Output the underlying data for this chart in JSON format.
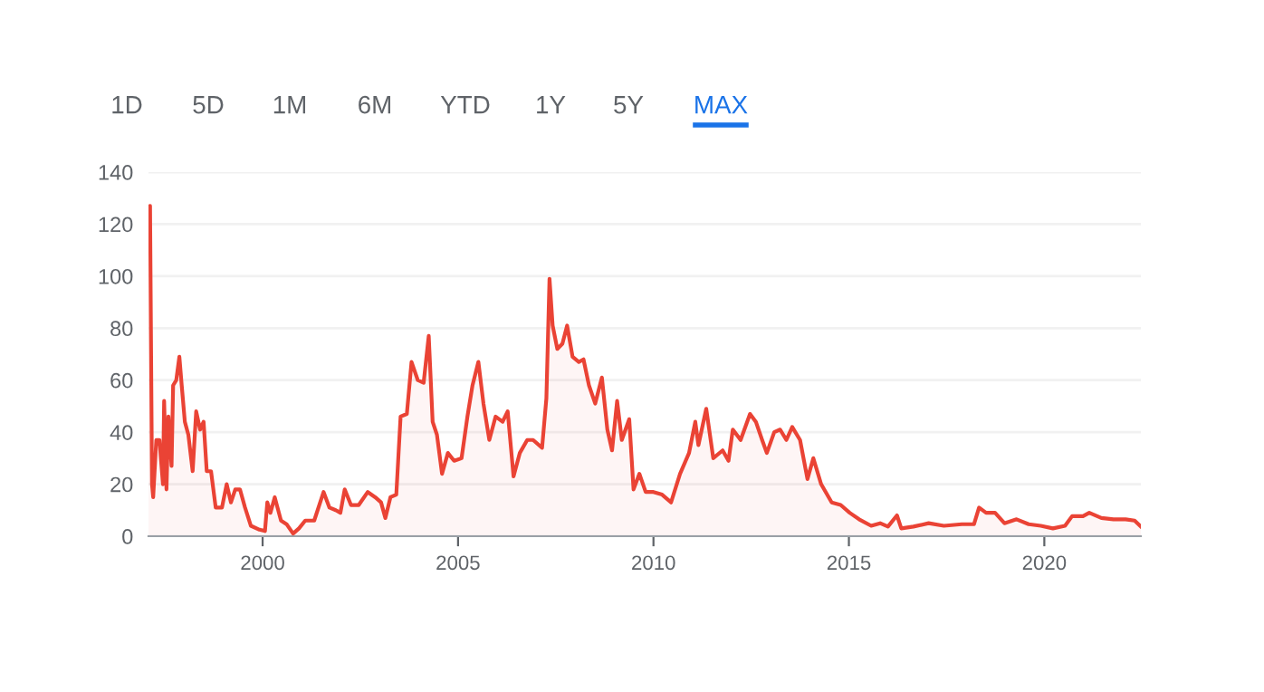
{
  "chart_data": {
    "type": "area",
    "annotations": [
      "1D",
      "5D",
      "1M",
      "6M",
      "YTD",
      "1Y",
      "5Y",
      "MAX"
    ],
    "x": [
      1997.08,
      1997.12,
      1997.17,
      1997.2,
      1997.28,
      1997.36,
      1997.45,
      1997.48,
      1997.54,
      1997.59,
      1997.67,
      1997.71,
      1997.79,
      1997.87,
      1997.93,
      1998.01,
      1998.1,
      1998.21,
      1998.3,
      1998.4,
      1998.49,
      1998.57,
      1998.68,
      1998.8,
      1998.96,
      1999.08,
      1999.19,
      1999.3,
      1999.42,
      1999.55,
      1999.7,
      1999.92,
      2000.06,
      2000.12,
      2000.2,
      2000.31,
      2000.47,
      2000.62,
      2000.78,
      2000.93,
      2001.09,
      2001.32,
      2001.56,
      2001.71,
      2001.87,
      2001.99,
      2002.1,
      2002.26,
      2002.46,
      2002.69,
      2002.88,
      2003.03,
      2003.14,
      2003.27,
      2003.42,
      2003.53,
      2003.69,
      2003.81,
      2003.97,
      2004.12,
      2004.25,
      2004.35,
      2004.46,
      2004.59,
      2004.74,
      2004.9,
      2005.09,
      2005.24,
      2005.37,
      2005.52,
      2005.65,
      2005.8,
      2005.96,
      2006.14,
      2006.27,
      2006.42,
      2006.58,
      2006.77,
      2006.92,
      2007.15,
      2007.26,
      2007.34,
      2007.42,
      2007.54,
      2007.67,
      2007.79,
      2007.93,
      2008.09,
      2008.21,
      2008.35,
      2008.51,
      2008.68,
      2008.82,
      2008.94,
      2009.07,
      2009.19,
      2009.38,
      2009.49,
      2009.64,
      2009.8,
      2010.0,
      2010.22,
      2010.45,
      2010.68,
      2010.91,
      2011.07,
      2011.15,
      2011.35,
      2011.53,
      2011.77,
      2011.92,
      2012.03,
      2012.23,
      2012.47,
      2012.62,
      2012.78,
      2012.9,
      2013.09,
      2013.24,
      2013.4,
      2013.55,
      2013.75,
      2013.94,
      2014.09,
      2014.29,
      2014.56,
      2014.79,
      2015.02,
      2015.26,
      2015.57,
      2015.8,
      2016.0,
      2016.23,
      2016.34,
      2016.65,
      2017.04,
      2017.43,
      2017.89,
      2018.2,
      2018.33,
      2018.51,
      2018.74,
      2018.98,
      2019.29,
      2019.6,
      2019.91,
      2020.22,
      2020.53,
      2020.71,
      2020.99,
      2021.15,
      2021.46,
      2021.77,
      2022.08,
      2022.31,
      2022.47
    ],
    "series": [
      {
        "color": "#ea4335",
        "values": [
          120,
          127,
          20,
          15,
          37,
          37,
          20,
          52,
          18,
          46,
          27,
          58,
          60,
          69,
          58,
          44,
          39,
          25,
          48,
          41,
          44,
          25,
          25,
          11,
          11,
          20,
          13,
          18,
          18,
          11,
          4,
          2.5,
          2,
          13,
          9,
          15,
          6,
          4.5,
          1,
          3,
          6,
          6,
          17,
          11,
          10,
          9,
          18,
          12,
          12,
          17,
          15,
          13,
          7,
          15,
          16,
          46,
          47,
          67,
          60,
          59,
          77,
          44,
          39,
          24,
          32,
          29,
          30,
          46,
          58,
          67,
          51,
          37,
          46,
          44,
          48,
          23,
          32,
          37,
          37,
          34,
          53,
          99,
          81,
          72,
          74,
          81,
          69,
          67,
          68,
          58,
          51,
          61,
          41,
          33,
          52,
          37,
          45,
          18,
          24,
          17,
          17,
          16,
          13,
          24,
          32,
          44,
          35,
          49,
          30,
          33,
          29,
          41,
          37,
          47,
          44,
          37,
          32,
          40,
          41,
          37,
          42,
          37,
          22,
          30,
          20,
          13,
          12,
          9,
          6.5,
          4,
          5,
          3.7,
          8,
          3,
          3.7,
          5,
          4,
          4.6,
          4.6,
          11,
          9,
          9,
          5,
          6.5,
          4.6,
          4,
          3,
          4,
          7.7,
          7.7,
          9,
          7,
          6.5,
          6.5,
          6,
          3.7
        ]
      }
    ],
    "xlim": [
      1997.08,
      2022.47
    ],
    "xticks": [
      2000,
      2005,
      2010,
      2015,
      2020
    ],
    "ylim": [
      0,
      140
    ],
    "yticks": [
      0,
      20,
      40,
      60,
      80,
      100,
      120,
      140
    ],
    "grid": "y",
    "legend": false
  }
}
